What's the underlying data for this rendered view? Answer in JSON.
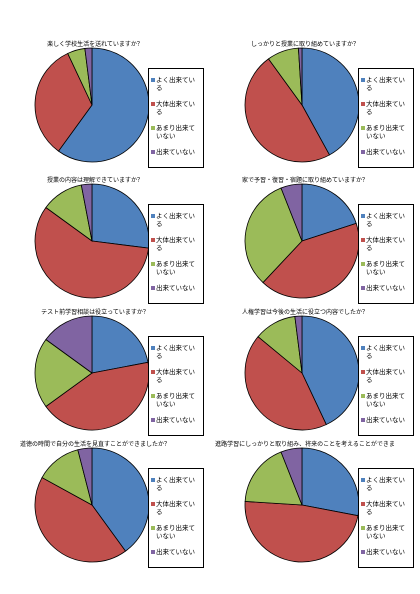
{
  "chart_data": [
    {
      "type": "pie",
      "title": "楽しく学校生活を送れていますか？",
      "categories": [
        "よく出来ている",
        "大体出来ている",
        "あまり出来ていない",
        "出来ていない"
      ],
      "values": [
        60,
        33,
        5,
        2
      ],
      "colors": [
        "#4f81bd",
        "#c0504d",
        "#9bbb59",
        "#8064a2"
      ]
    },
    {
      "type": "pie",
      "title": "しっかりと授業に取り組めていますか？",
      "categories": [
        "よく出来ている",
        "大体出来ている",
        "あまり出来ていない",
        "出来ていない"
      ],
      "values": [
        42,
        48,
        9,
        1
      ],
      "colors": [
        "#4f81bd",
        "#c0504d",
        "#9bbb59",
        "#8064a2"
      ]
    },
    {
      "type": "pie",
      "title": "授業の内容は理解できていますか？",
      "categories": [
        "よく出来ている",
        "大体出来ている",
        "あまり出来ていない",
        "出来ていない"
      ],
      "values": [
        27,
        58,
        12,
        3
      ],
      "colors": [
        "#4f81bd",
        "#c0504d",
        "#9bbb59",
        "#8064a2"
      ]
    },
    {
      "type": "pie",
      "title": "家で予習・復習・宿題に取り組めていますか？",
      "categories": [
        "よく出来ている",
        "大体出来ている",
        "あまり出来ていない",
        "出来ていない"
      ],
      "values": [
        20,
        42,
        32,
        6
      ],
      "colors": [
        "#4f81bd",
        "#c0504d",
        "#9bbb59",
        "#8064a2"
      ]
    },
    {
      "type": "pie",
      "title": "テスト前学習相談は役立っていますか？",
      "categories": [
        "よく出来ている",
        "大体出来ている",
        "あまり出来ていない",
        "出来ていない"
      ],
      "values": [
        22,
        43,
        20,
        15
      ],
      "colors": [
        "#4f81bd",
        "#c0504d",
        "#9bbb59",
        "#8064a2"
      ]
    },
    {
      "type": "pie",
      "title": "人権学習は今後の生活に役立つ内容でしたか？",
      "categories": [
        "よく出来ている",
        "大体出来ている",
        "あまり出来ていない",
        "出来ていない"
      ],
      "values": [
        43,
        43,
        12,
        2
      ],
      "colors": [
        "#4f81bd",
        "#c0504d",
        "#9bbb59",
        "#8064a2"
      ]
    },
    {
      "type": "pie",
      "title": "道徳の時間で自分の生活を見直すことができましたか？",
      "categories": [
        "よく出来ている",
        "大体出来ている",
        "あまり出来ていない",
        "出来ていない"
      ],
      "values": [
        40,
        43,
        13,
        4
      ],
      "colors": [
        "#4f81bd",
        "#c0504d",
        "#9bbb59",
        "#8064a2"
      ]
    },
    {
      "type": "pie",
      "title": "進路学習にしっかりと取り組み、将来のことを考えることができましたか？",
      "categories": [
        "よく出来ている",
        "大体出来ている",
        "あまり出来ていない",
        "出来ていない"
      ],
      "values": [
        28,
        48,
        18,
        6
      ],
      "colors": [
        "#4f81bd",
        "#c0504d",
        "#9bbb59",
        "#8064a2"
      ]
    }
  ]
}
